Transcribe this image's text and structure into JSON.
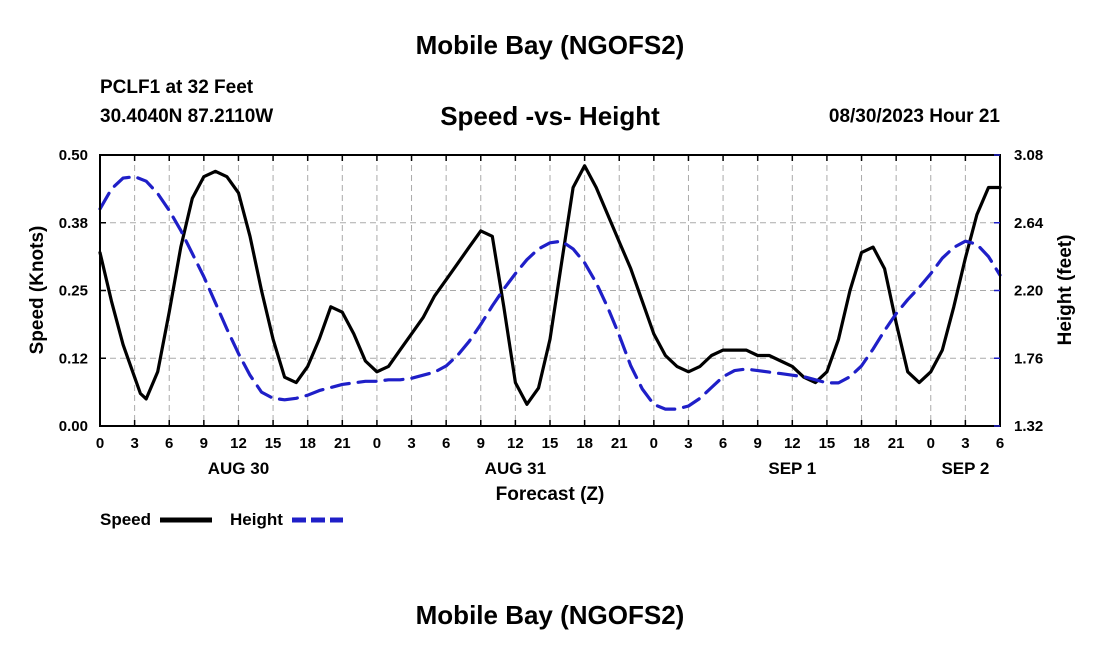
{
  "header": {
    "title": "Mobile Bay (NGOFS2)",
    "station": "PCLF1 at 32 Feet",
    "coords": "30.4040N  87.2110W",
    "subtitle": "Speed -vs- Height",
    "datetime": "08/30/2023 Hour 21"
  },
  "footer": {
    "title": "Mobile Bay (NGOFS2)"
  },
  "chart_data": {
    "type": "line",
    "xlabel": "Forecast (Z)",
    "ylabel": "Speed (Knots)",
    "y2label": "Height (feet)",
    "xlim": [
      0,
      78
    ],
    "ylim": [
      0,
      0.5
    ],
    "y2lim": [
      1.32,
      3.08
    ],
    "x_tick_labels": [
      "0",
      "3",
      "6",
      "9",
      "12",
      "15",
      "18",
      "21",
      "0",
      "3",
      "6",
      "9",
      "12",
      "15",
      "18",
      "21",
      "0",
      "3",
      "6",
      "9",
      "12",
      "15",
      "18",
      "21",
      "0",
      "3",
      "6"
    ],
    "y_tick_labels": [
      "0.00",
      "0.12",
      "0.25",
      "0.38",
      "0.50"
    ],
    "y2_tick_labels": [
      "1.32",
      "1.76",
      "2.20",
      "2.64",
      "3.08"
    ],
    "date_labels": [
      {
        "label": "AUG 30",
        "hour": 12
      },
      {
        "label": "AUG 31",
        "hour": 36
      },
      {
        "label": "SEP 1",
        "hour": 60
      },
      {
        "label": "SEP 2",
        "hour": 75
      }
    ],
    "grid": true,
    "series": [
      {
        "name": "Speed",
        "axis": "left",
        "color": "#000000",
        "dash": "solid",
        "x": [
          0,
          1,
          2,
          3,
          3.5,
          4,
          5,
          6,
          7,
          8,
          9,
          10,
          11,
          12,
          13,
          14,
          15,
          16,
          17,
          18,
          19,
          20,
          21,
          22,
          23,
          24,
          25,
          26,
          27,
          28,
          29,
          30,
          31,
          32,
          33,
          34,
          35,
          36,
          37,
          38,
          39,
          40,
          41,
          42,
          43,
          44,
          45,
          46,
          47,
          48,
          49,
          50,
          51,
          52,
          53,
          54,
          55,
          56,
          57,
          58,
          59,
          60,
          61,
          62,
          63,
          64,
          65,
          66,
          67,
          68,
          69,
          70,
          71,
          72,
          73,
          74,
          75,
          76,
          77,
          78
        ],
        "values": [
          0.32,
          0.23,
          0.15,
          0.09,
          0.06,
          0.05,
          0.1,
          0.21,
          0.33,
          0.42,
          0.46,
          0.47,
          0.46,
          0.43,
          0.35,
          0.25,
          0.16,
          0.09,
          0.08,
          0.11,
          0.16,
          0.22,
          0.21,
          0.17,
          0.12,
          0.1,
          0.11,
          0.14,
          0.17,
          0.2,
          0.24,
          0.27,
          0.3,
          0.33,
          0.36,
          0.35,
          0.22,
          0.08,
          0.04,
          0.07,
          0.16,
          0.3,
          0.44,
          0.48,
          0.44,
          0.39,
          0.34,
          0.29,
          0.23,
          0.17,
          0.13,
          0.11,
          0.1,
          0.11,
          0.13,
          0.14,
          0.14,
          0.14,
          0.13,
          0.13,
          0.12,
          0.11,
          0.09,
          0.08,
          0.1,
          0.16,
          0.25,
          0.32,
          0.33,
          0.29,
          0.19,
          0.1,
          0.08,
          0.1,
          0.14,
          0.22,
          0.31,
          0.39,
          0.44,
          0.44
        ]
      },
      {
        "name": "Height",
        "axis": "right",
        "color": "#1f1fc8",
        "dash": "dashed",
        "x": [
          0,
          1,
          2,
          3,
          4,
          5,
          6,
          7,
          8,
          9,
          10,
          11,
          12,
          13,
          14,
          15,
          16,
          17,
          18,
          19,
          20,
          21,
          22,
          23,
          24,
          25,
          26,
          27,
          28,
          29,
          30,
          31,
          32,
          33,
          34,
          35,
          36,
          37,
          38,
          39,
          40,
          41,
          42,
          43,
          44,
          45,
          46,
          47,
          48,
          49,
          50,
          51,
          52,
          53,
          54,
          55,
          56,
          57,
          58,
          59,
          60,
          61,
          62,
          63,
          64,
          65,
          66,
          67,
          68,
          69,
          70,
          71,
          72,
          73,
          74,
          75,
          76,
          77,
          78
        ],
        "values": [
          2.73,
          2.86,
          2.93,
          2.94,
          2.91,
          2.83,
          2.72,
          2.59,
          2.44,
          2.29,
          2.12,
          1.95,
          1.79,
          1.65,
          1.54,
          1.5,
          1.49,
          1.5,
          1.52,
          1.55,
          1.57,
          1.59,
          1.6,
          1.61,
          1.61,
          1.62,
          1.62,
          1.63,
          1.65,
          1.67,
          1.71,
          1.78,
          1.87,
          1.98,
          2.1,
          2.21,
          2.31,
          2.4,
          2.47,
          2.51,
          2.52,
          2.47,
          2.38,
          2.25,
          2.09,
          1.91,
          1.71,
          1.56,
          1.46,
          1.43,
          1.43,
          1.45,
          1.5,
          1.57,
          1.64,
          1.68,
          1.69,
          1.68,
          1.67,
          1.66,
          1.65,
          1.64,
          1.62,
          1.6,
          1.6,
          1.64,
          1.71,
          1.82,
          1.94,
          2.05,
          2.14,
          2.22,
          2.31,
          2.41,
          2.48,
          2.52,
          2.5,
          2.42,
          2.3
        ]
      }
    ],
    "legend": {
      "placement": "bottom-left",
      "entries": [
        "Speed",
        "Height"
      ]
    }
  }
}
